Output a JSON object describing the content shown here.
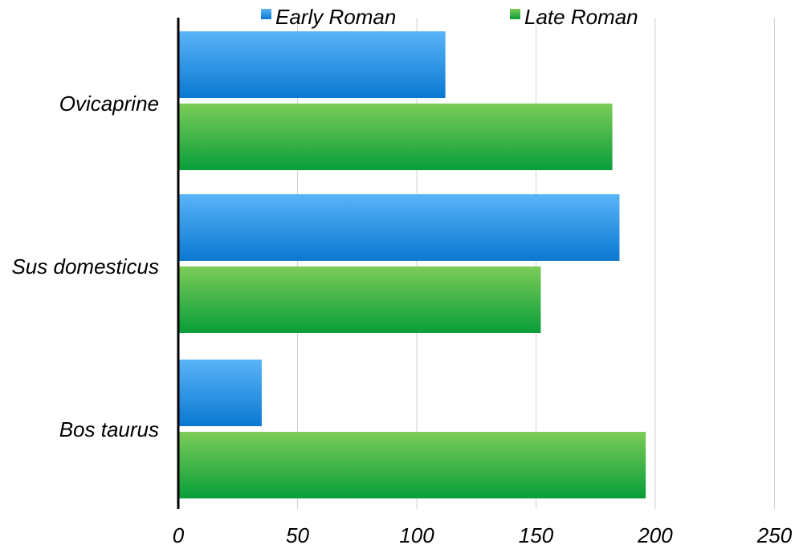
{
  "chart_data": {
    "type": "bar",
    "orientation": "horizontal",
    "categories": [
      "Ovicaprine",
      "Sus domesticus",
      "Bos taurus"
    ],
    "series": [
      {
        "name": "Early Roman",
        "values": [
          112,
          185,
          35
        ],
        "color_top": "#5ab4f8",
        "color_bottom": "#0a78d2"
      },
      {
        "name": "Late Roman",
        "values": [
          182,
          152,
          196
        ],
        "color_top": "#7ccc58",
        "color_bottom": "#089e3a"
      }
    ],
    "xlim": [
      0,
      250
    ],
    "xticks": [
      "0",
      "50",
      "100",
      "150",
      "200",
      "250"
    ],
    "grid": true,
    "legend_position": "top-center"
  }
}
